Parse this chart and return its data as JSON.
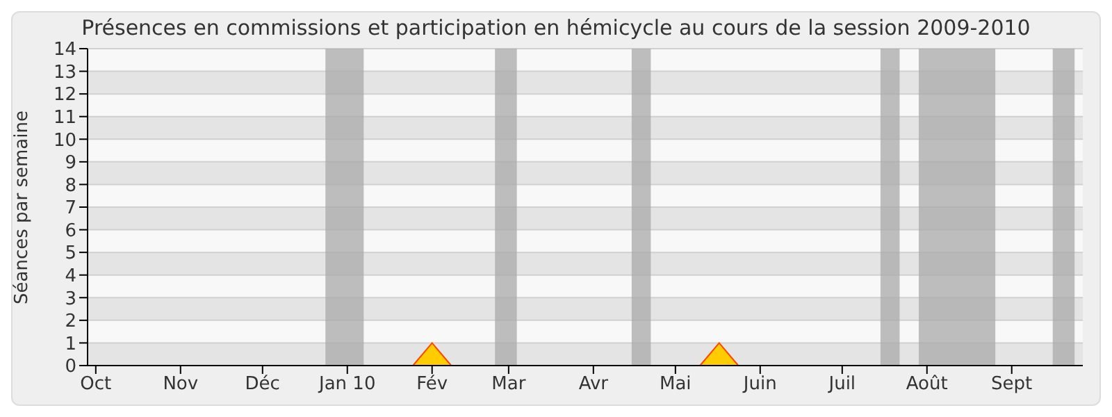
{
  "chart_data": {
    "type": "area",
    "title": "Présences en commissions et participation en hémicycle au cours de la session 2009-2010",
    "ylabel": "Séances par semaine",
    "x": [
      "2009-09-28",
      "2009-10-05",
      "2009-10-12",
      "2009-10-19",
      "2009-10-26",
      "2009-11-02",
      "2009-11-09",
      "2009-11-16",
      "2009-11-23",
      "2009-11-30",
      "2009-12-07",
      "2009-12-14",
      "2009-12-21",
      "2009-12-28",
      "2010-01-04",
      "2010-01-11",
      "2010-01-18",
      "2010-01-25",
      "2010-02-01",
      "2010-02-08",
      "2010-02-15",
      "2010-02-22",
      "2010-03-01",
      "2010-03-08",
      "2010-03-15",
      "2010-03-22",
      "2010-03-29",
      "2010-04-05",
      "2010-04-12",
      "2010-04-19",
      "2010-04-26",
      "2010-05-03",
      "2010-05-10",
      "2010-05-17",
      "2010-05-24",
      "2010-05-31",
      "2010-06-07",
      "2010-06-14",
      "2010-06-21",
      "2010-06-28",
      "2010-07-05",
      "2010-07-12",
      "2010-07-19",
      "2010-07-26",
      "2010-08-02",
      "2010-08-09",
      "2010-08-16",
      "2010-08-23",
      "2010-08-30",
      "2010-09-06",
      "2010-09-13",
      "2010-09-20",
      "2010-09-27"
    ],
    "series": [
      {
        "color": "#ffcc00",
        "values": [
          0,
          0,
          0,
          0,
          0,
          0,
          0,
          0,
          0,
          0,
          0,
          0,
          0,
          0,
          0,
          0,
          0,
          0,
          1,
          0,
          0,
          0,
          0,
          0,
          0,
          0,
          0,
          0,
          0,
          0,
          0,
          0,
          0,
          1,
          0,
          0,
          0,
          0,
          0,
          0,
          0,
          0,
          0,
          0,
          0,
          0,
          0,
          0,
          0,
          0,
          0,
          0,
          0
        ]
      }
    ],
    "xlim": [
      "2009-09-28",
      "2010-09-27"
    ],
    "xticks": [
      {
        "value": "2009-10-01",
        "label": "Oct"
      },
      {
        "value": "2009-11-01",
        "label": "Nov"
      },
      {
        "value": "2009-12-01",
        "label": "Déc"
      },
      {
        "value": "2010-01-01",
        "label": "Jan 10"
      },
      {
        "value": "2010-02-01",
        "label": "Fév"
      },
      {
        "value": "2010-03-01",
        "label": "Mar"
      },
      {
        "value": "2010-04-01",
        "label": "Avr"
      },
      {
        "value": "2010-05-01",
        "label": "Mai"
      },
      {
        "value": "2010-06-01",
        "label": "Juin"
      },
      {
        "value": "2010-07-01",
        "label": "Juil"
      },
      {
        "value": "2010-08-01",
        "label": "Août"
      },
      {
        "value": "2010-09-01",
        "label": "Sept"
      }
    ],
    "ylim": [
      0,
      14
    ],
    "yticks": [
      0,
      1,
      2,
      3,
      4,
      5,
      6,
      7,
      8,
      9,
      10,
      11,
      12,
      13,
      14
    ],
    "grid": "y",
    "bands": [
      {
        "axis": "x",
        "from": "2009-12-24",
        "to": "2010-01-07",
        "color": "#aaaaaa"
      },
      {
        "axis": "x",
        "from": "2010-02-24",
        "to": "2010-03-04",
        "color": "#aaaaaa"
      },
      {
        "axis": "x",
        "from": "2010-04-15",
        "to": "2010-04-22",
        "color": "#aaaaaa"
      },
      {
        "axis": "x",
        "from": "2010-07-15",
        "to": "2010-07-22",
        "color": "#aaaaaa"
      },
      {
        "axis": "x",
        "from": "2010-07-29",
        "to": "2010-08-26",
        "color": "#aaaaaa"
      },
      {
        "axis": "x",
        "from": "2010-09-16",
        "to": "2010-09-24",
        "color": "#aaaaaa"
      }
    ]
  }
}
